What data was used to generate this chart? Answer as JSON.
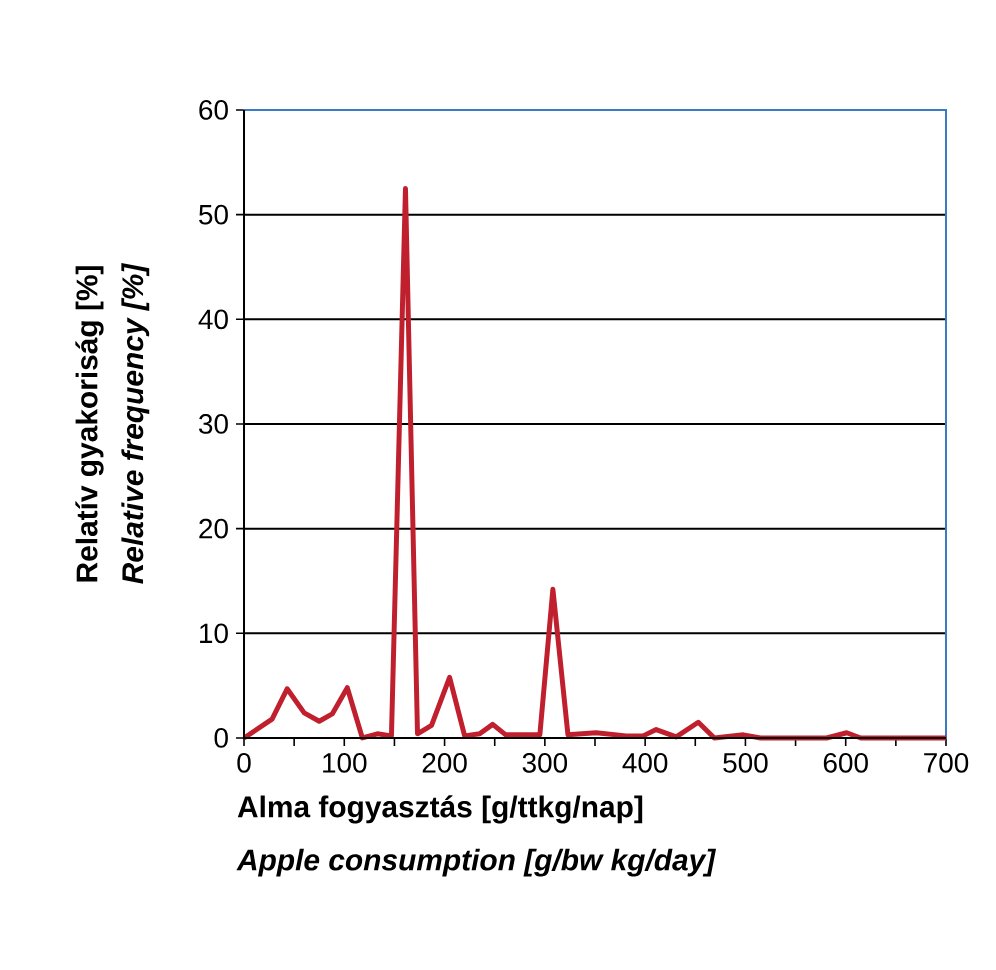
{
  "chart_data": {
    "type": "line",
    "xlabel": "Alma fogyasztás [g/ttkg/nap]",
    "ylabel": "Relatív gyakoriság [%]",
    "annotations": [
      "Apple consumption [g/bw kg/day]",
      "Relative frequency [%]"
    ],
    "x": [
      0,
      28,
      43,
      60,
      75,
      88,
      103,
      118,
      133,
      147,
      161,
      173,
      187,
      205,
      220,
      235,
      248,
      261,
      295,
      308,
      323,
      351,
      381,
      398,
      411,
      431,
      453,
      469,
      498,
      515,
      581,
      601,
      615,
      700
    ],
    "series": [
      {
        "color": "#c0202e",
        "values": [
          0,
          1.8,
          4.7,
          2.4,
          1.6,
          2.3,
          4.8,
          0,
          0.4,
          0.2,
          52.5,
          0.4,
          1.2,
          5.8,
          0.2,
          0.4,
          1.3,
          0.3,
          0.3,
          14.2,
          0.3,
          0.5,
          0.2,
          0.2,
          0.8,
          0.1,
          1.5,
          0,
          0.3,
          0,
          0,
          0.5,
          0,
          0
        ]
      }
    ],
    "xlim": [
      0,
      700
    ],
    "ylim": [
      0,
      60
    ],
    "xticks": [
      0,
      {
        "value": 50,
        "label": null
      },
      100,
      {
        "value": 150,
        "label": null
      },
      200,
      {
        "value": 250,
        "label": null
      },
      300,
      {
        "value": 350,
        "label": null
      },
      400,
      {
        "value": 450,
        "label": null
      },
      500,
      {
        "value": 550,
        "label": null
      },
      600,
      {
        "value": 650,
        "label": null
      },
      700
    ],
    "yticks": [
      0,
      10,
      20,
      30,
      40,
      50,
      60
    ],
    "grid": "y",
    "marker": "none",
    "line_style": "solid"
  }
}
